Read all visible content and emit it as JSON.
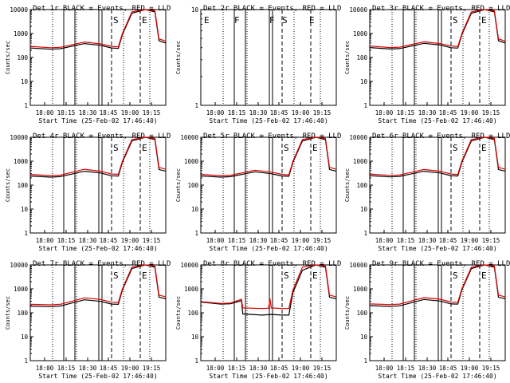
{
  "chart_data": [
    {
      "type": "line",
      "title": "Det 1r BLACK = Events, RED = LLD",
      "xlabel": "Start Time (25-Feb-02 17:46:40)",
      "ylabel": "Counts/sec",
      "x_ticks": [
        "18:00",
        "18:15",
        "18:30",
        "18:45",
        "19:00",
        "19:15"
      ],
      "y_ticks": [
        "1",
        "10",
        "100",
        "1000",
        "10000"
      ],
      "ylim": [
        1,
        10000
      ],
      "yscale": "log",
      "grid": false,
      "markers": [
        "S",
        "E"
      ],
      "colors": {
        "events": "#000000",
        "lld": "#e00000"
      },
      "series": [
        {
          "name": "BLACK = Events",
          "x": [
            0,
            15,
            22,
            40,
            52,
            60,
            65,
            68,
            75,
            85,
            92,
            95,
            100
          ],
          "y": [
            250,
            220,
            230,
            380,
            320,
            250,
            240,
            900,
            7000,
            12000,
            8000,
            500,
            400
          ]
        },
        {
          "name": "RED = LLD",
          "x": [
            0,
            15,
            22,
            40,
            52,
            60,
            65,
            68,
            75,
            85,
            92,
            95,
            100
          ],
          "y": [
            290,
            255,
            265,
            440,
            370,
            290,
            280,
            1000,
            8000,
            12000,
            9000,
            600,
            480
          ]
        }
      ]
    },
    {
      "type": "line",
      "title": "Det 2r BLACK = Events, RED = LLD",
      "xlabel": "Start Time (25-Feb-02 17:46:40)",
      "ylabel": "Counts/sec",
      "x_ticks": [
        "18:00",
        "18:15",
        "18:30",
        "18:45",
        "19:00",
        "19:15"
      ],
      "y_ticks": [
        "1",
        "10"
      ],
      "ylim": [
        1,
        10
      ],
      "yscale": "log",
      "grid": false,
      "markers": [
        "E",
        "F",
        "F",
        "S",
        "E"
      ],
      "colors": {
        "events": "#000000",
        "lld": "#e00000"
      },
      "series": [
        {
          "name": "BLACK = Events",
          "x": [],
          "y": []
        },
        {
          "name": "RED = LLD",
          "x": [],
          "y": []
        }
      ]
    },
    {
      "type": "line",
      "title": "Det 3r BLACK = Events, RED = LLD",
      "xlabel": "Start Time (25-Feb-02 17:46:40)",
      "ylabel": "Counts/sec",
      "x_ticks": [
        "18:00",
        "18:15",
        "18:30",
        "18:45",
        "19:00",
        "19:15"
      ],
      "y_ticks": [
        "1",
        "10",
        "100",
        "1000",
        "10000"
      ],
      "ylim": [
        1,
        10000
      ],
      "yscale": "log",
      "grid": false,
      "markers": [
        "S",
        "E"
      ],
      "colors": {
        "events": "#000000",
        "lld": "#e00000"
      },
      "series": [
        {
          "name": "BLACK = Events",
          "x": [
            0,
            15,
            22,
            40,
            52,
            60,
            65,
            68,
            75,
            85,
            92,
            95,
            100
          ],
          "y": [
            260,
            225,
            235,
            390,
            330,
            255,
            245,
            900,
            7000,
            12000,
            8000,
            500,
            400
          ]
        },
        {
          "name": "RED = LLD",
          "x": [
            0,
            15,
            22,
            40,
            52,
            60,
            65,
            68,
            75,
            85,
            92,
            95,
            100
          ],
          "y": [
            300,
            260,
            270,
            450,
            380,
            300,
            285,
            1000,
            8000,
            12000,
            9000,
            600,
            480
          ]
        }
      ]
    },
    {
      "type": "line",
      "title": "Det 4r BLACK = Events, RED = LLD",
      "xlabel": "Start Time (25-Feb-02 17:46:40)",
      "ylabel": "Counts/sec",
      "x_ticks": [
        "18:00",
        "18:15",
        "18:30",
        "18:45",
        "19:00",
        "19:15"
      ],
      "y_ticks": [
        "1",
        "10",
        "100",
        "1000",
        "10000"
      ],
      "ylim": [
        1,
        10000
      ],
      "yscale": "log",
      "grid": false,
      "markers": [
        "S",
        "E"
      ],
      "colors": {
        "events": "#000000",
        "lld": "#e00000"
      },
      "series": [
        {
          "name": "BLACK = Events",
          "x": [
            0,
            15,
            22,
            40,
            52,
            60,
            65,
            68,
            75,
            85,
            92,
            95,
            100
          ],
          "y": [
            240,
            215,
            225,
            380,
            320,
            245,
            240,
            900,
            7000,
            12000,
            8000,
            450,
            380
          ]
        },
        {
          "name": "RED = LLD",
          "x": [
            0,
            15,
            22,
            40,
            52,
            60,
            65,
            68,
            75,
            85,
            92,
            95,
            100
          ],
          "y": [
            280,
            250,
            260,
            460,
            380,
            290,
            285,
            1000,
            8000,
            12000,
            9000,
            550,
            460
          ]
        }
      ]
    },
    {
      "type": "line",
      "title": "Det 5r BLACK = Events, RED = LLD",
      "xlabel": "Start Time (25-Feb-02 17:46:40)",
      "ylabel": "Counts/sec",
      "x_ticks": [
        "18:00",
        "18:15",
        "18:30",
        "18:45",
        "19:00",
        "19:15"
      ],
      "y_ticks": [
        "1",
        "10",
        "100",
        "1000",
        "10000"
      ],
      "ylim": [
        1,
        10000
      ],
      "yscale": "log",
      "grid": false,
      "markers": [
        "S",
        "E"
      ],
      "colors": {
        "events": "#000000",
        "lld": "#e00000"
      },
      "series": [
        {
          "name": "BLACK = Events",
          "x": [
            0,
            15,
            22,
            40,
            52,
            60,
            65,
            68,
            75,
            85,
            92,
            95,
            100
          ],
          "y": [
            240,
            215,
            225,
            360,
            300,
            240,
            235,
            900,
            7000,
            12000,
            8000,
            450,
            380
          ]
        },
        {
          "name": "RED = LLD",
          "x": [
            0,
            15,
            22,
            40,
            52,
            60,
            65,
            68,
            75,
            85,
            92,
            95,
            100
          ],
          "y": [
            280,
            250,
            260,
            420,
            350,
            280,
            270,
            1000,
            8000,
            12000,
            9000,
            550,
            460
          ]
        }
      ]
    },
    {
      "type": "line",
      "title": "Det 6r BLACK = Events, RED = LLD",
      "xlabel": "Start Time (25-Feb-02 17:46:40)",
      "ylabel": "Counts/sec",
      "x_ticks": [
        "18:00",
        "18:15",
        "18:30",
        "18:45",
        "19:00",
        "19:15"
      ],
      "y_ticks": [
        "1",
        "10",
        "100",
        "1000",
        "10000"
      ],
      "ylim": [
        1,
        10000
      ],
      "yscale": "log",
      "grid": false,
      "markers": [
        "S",
        "E"
      ],
      "colors": {
        "events": "#000000",
        "lld": "#e00000"
      },
      "series": [
        {
          "name": "BLACK = Events",
          "x": [
            0,
            15,
            22,
            40,
            52,
            60,
            65,
            68,
            75,
            85,
            92,
            95,
            100
          ],
          "y": [
            250,
            220,
            230,
            380,
            320,
            250,
            240,
            900,
            7000,
            12000,
            8000,
            450,
            380
          ]
        },
        {
          "name": "RED = LLD",
          "x": [
            0,
            15,
            22,
            40,
            52,
            60,
            65,
            68,
            75,
            85,
            92,
            95,
            100
          ],
          "y": [
            290,
            255,
            265,
            450,
            380,
            290,
            280,
            1000,
            8000,
            12000,
            9000,
            550,
            460
          ]
        }
      ]
    },
    {
      "type": "line",
      "title": "Det 7r BLACK = Events, RED = LLD",
      "xlabel": "Start Time (25-Feb-02 17:46:40)",
      "ylabel": "Counts/sec",
      "x_ticks": [
        "18:00",
        "18:15",
        "18:30",
        "18:45",
        "19:00",
        "19:15"
      ],
      "y_ticks": [
        "1",
        "10",
        "100",
        "1000",
        "10000"
      ],
      "ylim": [
        1,
        10000
      ],
      "yscale": "log",
      "grid": false,
      "markers": [
        "S",
        "E"
      ],
      "colors": {
        "events": "#000000",
        "lld": "#e00000"
      },
      "series": [
        {
          "name": "BLACK = Events",
          "x": [
            0,
            15,
            22,
            40,
            52,
            60,
            65,
            68,
            75,
            85,
            92,
            95,
            100
          ],
          "y": [
            190,
            180,
            190,
            350,
            300,
            230,
            225,
            900,
            7000,
            12000,
            8000,
            450,
            380
          ]
        },
        {
          "name": "RED = LLD",
          "x": [
            0,
            15,
            22,
            40,
            52,
            60,
            65,
            68,
            75,
            85,
            92,
            95,
            100
          ],
          "y": [
            225,
            215,
            225,
            420,
            360,
            275,
            270,
            1000,
            8000,
            12000,
            9000,
            550,
            460
          ]
        }
      ]
    },
    {
      "type": "line",
      "title": "Det 8r BLACK = Events, RED = LLD",
      "xlabel": "Start Time (25-Feb-02 17:46:40)",
      "ylabel": "Counts/sec",
      "x_ticks": [
        "18:00",
        "18:15",
        "18:30",
        "18:45",
        "19:00",
        "19:15"
      ],
      "y_ticks": [
        "1",
        "10",
        "100",
        "1000",
        "10000"
      ],
      "ylim": [
        1,
        10000
      ],
      "yscale": "log",
      "grid": false,
      "markers": [
        "S",
        "E"
      ],
      "colors": {
        "events": "#000000",
        "lld": "#e00000"
      },
      "series": [
        {
          "name": "BLACK = Events",
          "x": [
            0,
            15,
            22,
            30,
            31,
            45,
            52,
            60,
            65,
            68,
            75,
            85,
            92,
            95,
            100
          ],
          "y": [
            280,
            230,
            240,
            320,
            90,
            80,
            85,
            80,
            80,
            700,
            6000,
            12000,
            8000,
            450,
            380
          ]
        },
        {
          "name": "RED = LLD",
          "x": [
            0,
            15,
            22,
            30,
            31,
            45,
            50,
            51,
            52,
            60,
            65,
            68,
            75,
            85,
            92,
            95,
            100
          ],
          "y": [
            290,
            245,
            255,
            370,
            160,
            150,
            155,
            400,
            160,
            150,
            150,
            900,
            8000,
            12000,
            9000,
            550,
            460
          ]
        }
      ]
    },
    {
      "type": "line",
      "title": "Det 9r BLACK = Events, RED = LLD",
      "xlabel": "Start Time (25-Feb-02 17:46:40)",
      "ylabel": "Counts/sec",
      "x_ticks": [
        "18:00",
        "18:15",
        "18:30",
        "18:45",
        "19:00",
        "19:15"
      ],
      "y_ticks": [
        "1",
        "10",
        "100",
        "1000",
        "10000"
      ],
      "ylim": [
        1,
        10000
      ],
      "yscale": "log",
      "grid": false,
      "markers": [
        "S",
        "E"
      ],
      "colors": {
        "events": "#000000",
        "lld": "#e00000"
      },
      "series": [
        {
          "name": "BLACK = Events",
          "x": [
            0,
            15,
            22,
            40,
            52,
            60,
            65,
            68,
            75,
            85,
            92,
            95,
            100
          ],
          "y": [
            200,
            185,
            195,
            360,
            310,
            235,
            230,
            900,
            7000,
            12000,
            8000,
            450,
            380
          ]
        },
        {
          "name": "RED = LLD",
          "x": [
            0,
            15,
            22,
            40,
            52,
            60,
            65,
            68,
            75,
            85,
            92,
            95,
            100
          ],
          "y": [
            235,
            220,
            230,
            430,
            370,
            280,
            275,
            1000,
            8000,
            12000,
            9000,
            550,
            460
          ]
        }
      ]
    }
  ]
}
